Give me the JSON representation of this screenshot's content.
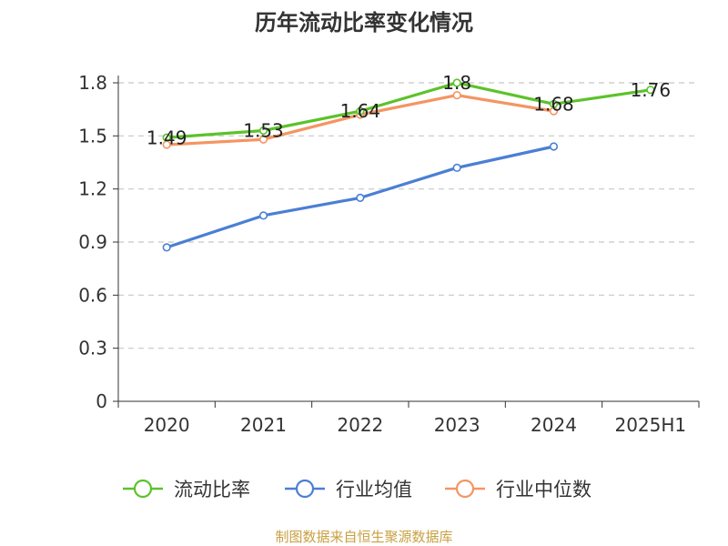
{
  "chart_data": {
    "type": "line",
    "title": "历年流动比率变化情况",
    "categories": [
      "2020",
      "2021",
      "2022",
      "2023",
      "2024",
      "2025H1"
    ],
    "yticks": [
      "0",
      "0.3",
      "0.6",
      "0.9",
      "1.2",
      "1.5",
      "1.8"
    ],
    "ylim": [
      0,
      1.8
    ],
    "grid": true,
    "legend_position": "bottom",
    "series": [
      {
        "name": "流动比率",
        "color": "#5cc22b",
        "values": [
          1.49,
          1.53,
          1.64,
          1.8,
          1.68,
          1.76
        ],
        "labels": [
          "1.49",
          "1.53",
          "1.64",
          "1.8",
          "1.68",
          "1.76"
        ]
      },
      {
        "name": "行业均值",
        "color": "#4a7fd4",
        "values": [
          0.87,
          1.05,
          1.15,
          1.32,
          1.44,
          null
        ]
      },
      {
        "name": "行业中位数",
        "color": "#f49563",
        "values": [
          1.45,
          1.48,
          1.62,
          1.73,
          1.64,
          null
        ]
      }
    ]
  },
  "source": "制图数据来自恒生聚源数据库"
}
